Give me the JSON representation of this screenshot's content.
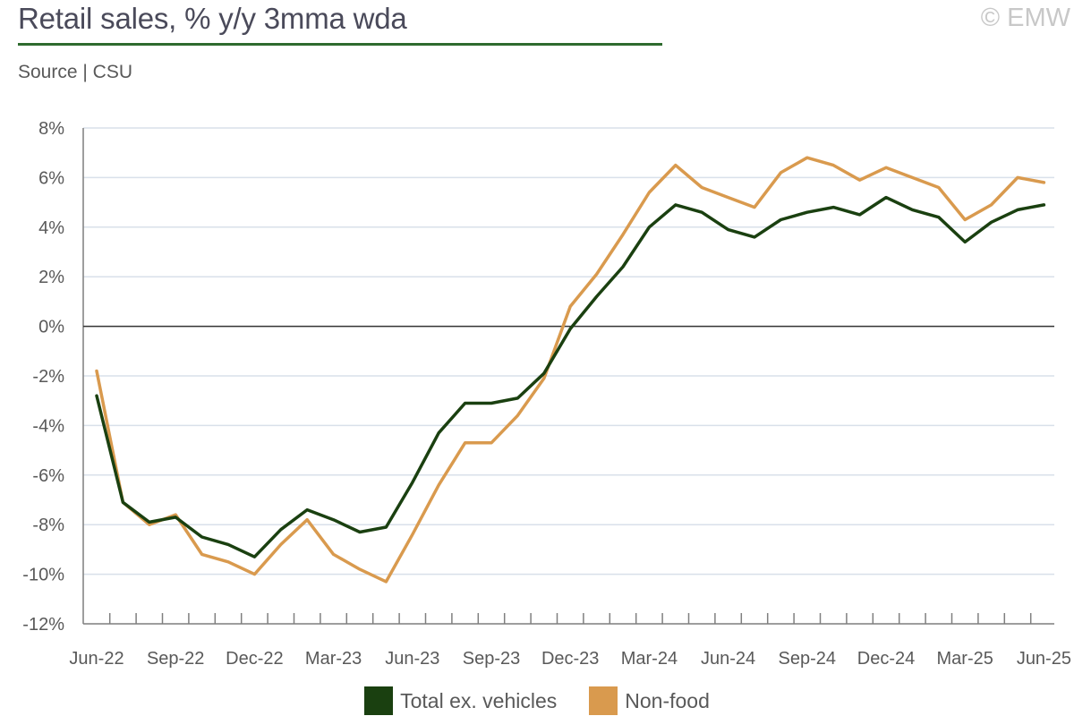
{
  "header": {
    "title": "Retail sales, % y/y 3mma wda",
    "copyright": "© EMW",
    "source": "Source | CSU"
  },
  "colors": {
    "title_rule": "#2e6b2e",
    "total_ex_vehicles": "#1a4010",
    "non_food": "#d99a4e",
    "grid": "#d9e0ea",
    "zero_line": "#333333"
  },
  "chart_data": {
    "type": "line",
    "x": [
      "Jun-22",
      "Jul-22",
      "Aug-22",
      "Sep-22",
      "Oct-22",
      "Nov-22",
      "Dec-22",
      "Jan-23",
      "Feb-23",
      "Mar-23",
      "Apr-23",
      "May-23",
      "Jun-23",
      "Jul-23",
      "Aug-23",
      "Sep-23",
      "Oct-23",
      "Nov-23",
      "Dec-23",
      "Jan-24",
      "Feb-24",
      "Mar-24",
      "Apr-24",
      "May-24",
      "Jun-24",
      "Jul-24",
      "Aug-24",
      "Sep-24",
      "Oct-24",
      "Nov-24",
      "Dec-24",
      "Jan-25",
      "Feb-25",
      "Mar-25",
      "Apr-25",
      "May-25",
      "Jun-25"
    ],
    "x_tick_labels": [
      "Jun-22",
      "Sep-22",
      "Dec-22",
      "Mar-23",
      "Jun-23",
      "Sep-23",
      "Dec-23",
      "Mar-24",
      "Jun-24",
      "Sep-24",
      "Dec-24",
      "Mar-25",
      "Jun-25"
    ],
    "y_tick_labels": [
      "8%",
      "6%",
      "4%",
      "2%",
      "0%",
      "-2%",
      "-4%",
      "-6%",
      "-8%",
      "-10%",
      "-12%"
    ],
    "ylim": [
      -12,
      8
    ],
    "y_step": 2,
    "grid": true,
    "legend_position": "bottom",
    "series": [
      {
        "name": "Total ex. vehicles",
        "color": "#1a4010",
        "values": [
          -2.8,
          -7.1,
          -7.9,
          -7.7,
          -8.5,
          -8.8,
          -9.3,
          -8.2,
          -7.4,
          -7.8,
          -8.3,
          -8.1,
          -6.3,
          -4.3,
          -3.1,
          -3.1,
          -2.9,
          -1.9,
          -0.1,
          1.2,
          2.4,
          4.0,
          4.9,
          4.6,
          3.9,
          3.6,
          4.3,
          4.6,
          4.8,
          4.5,
          5.2,
          4.7,
          4.4,
          3.4,
          4.2,
          4.7,
          4.9
        ]
      },
      {
        "name": "Non-food",
        "color": "#d99a4e",
        "values": [
          -1.8,
          -7.1,
          -8.0,
          -7.6,
          -9.2,
          -9.5,
          -10.0,
          -8.8,
          -7.8,
          -9.2,
          -9.8,
          -10.3,
          -8.4,
          -6.4,
          -4.7,
          -4.7,
          -3.6,
          -2.1,
          0.8,
          2.1,
          3.7,
          5.4,
          6.5,
          5.6,
          5.2,
          4.8,
          6.2,
          6.8,
          6.5,
          5.9,
          6.4,
          6.0,
          5.6,
          4.3,
          4.9,
          6.0,
          5.8
        ]
      }
    ]
  },
  "legend": {
    "items": [
      {
        "label": "Total ex. vehicles",
        "color": "#1a4010"
      },
      {
        "label": "Non-food",
        "color": "#d99a4e"
      }
    ]
  }
}
